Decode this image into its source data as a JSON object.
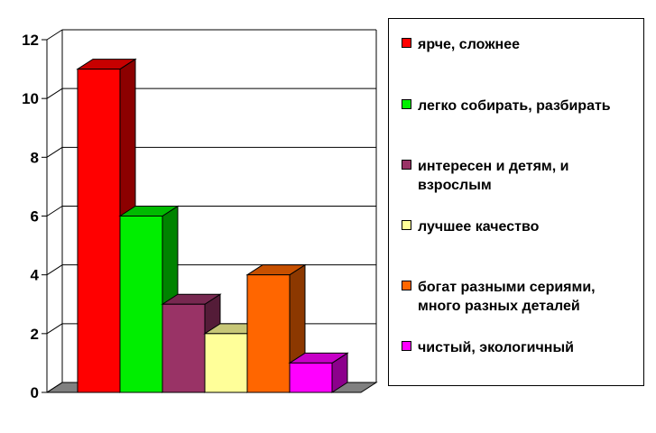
{
  "chart_data": {
    "type": "bar",
    "title": "",
    "xlabel": "",
    "ylabel": "",
    "ylim": [
      0,
      12
    ],
    "yticks": [
      "0",
      "2",
      "4",
      "6",
      "8",
      "10",
      "12"
    ],
    "grid": true,
    "three_d": true,
    "legend_position": "right",
    "series": [
      {
        "name": "ярче, сложнее",
        "values": [
          11
        ],
        "color": "#ff0000"
      },
      {
        "name": "легко собирать, разбирать",
        "values": [
          6
        ],
        "color": "#00ee00"
      },
      {
        "name": "интересен и детям, и взрослым",
        "values": [
          3
        ],
        "color": "#993366"
      },
      {
        "name": "лучшее качество",
        "values": [
          2
        ],
        "color": "#ffff99"
      },
      {
        "name": "богат разными сериями, много разных деталей",
        "values": [
          4
        ],
        "color": "#ff6600"
      },
      {
        "name": "чистый, экологичный",
        "values": [
          1
        ],
        "color": "#ff00ff"
      }
    ]
  }
}
